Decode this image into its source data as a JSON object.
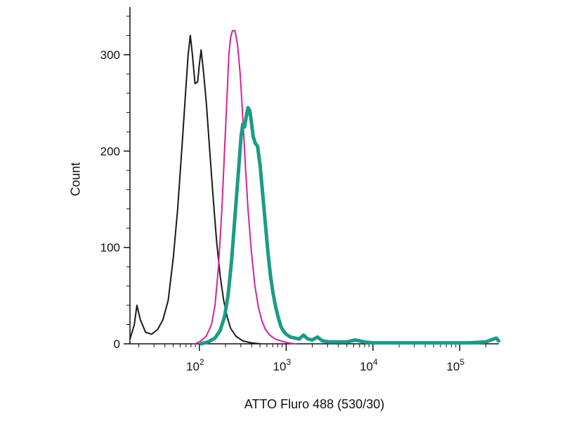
{
  "chart_data": {
    "type": "line",
    "title": "",
    "xlabel": "ATTO Fluro 488 (530/30)",
    "ylabel": "Count",
    "x_scale": "log10",
    "x_range_log10": [
      1.2,
      5.45
    ],
    "ylim": [
      0,
      350
    ],
    "grid": false,
    "legend": "none",
    "y_major_ticks": [
      0,
      100,
      200,
      300
    ],
    "y_minor_step": 20,
    "x_major_exponents": [
      2,
      3,
      4,
      5
    ],
    "x_major_base_label": "10",
    "axis_color": "#111111",
    "series": [
      {
        "name": "series-black",
        "color": "#1a1a1a",
        "stroke_width": 2,
        "points_log10x_count": [
          [
            1.2,
            5
          ],
          [
            1.25,
            20
          ],
          [
            1.28,
            40
          ],
          [
            1.32,
            25
          ],
          [
            1.38,
            12
          ],
          [
            1.45,
            10
          ],
          [
            1.52,
            15
          ],
          [
            1.58,
            25
          ],
          [
            1.64,
            45
          ],
          [
            1.7,
            90
          ],
          [
            1.75,
            140
          ],
          [
            1.8,
            205
          ],
          [
            1.84,
            260
          ],
          [
            1.87,
            300
          ],
          [
            1.895,
            320
          ],
          [
            1.92,
            300
          ],
          [
            1.95,
            270
          ],
          [
            1.98,
            272
          ],
          [
            2.0,
            290
          ],
          [
            2.02,
            305
          ],
          [
            2.05,
            280
          ],
          [
            2.08,
            250
          ],
          [
            2.12,
            200
          ],
          [
            2.16,
            150
          ],
          [
            2.2,
            105
          ],
          [
            2.24,
            70
          ],
          [
            2.28,
            45
          ],
          [
            2.32,
            28
          ],
          [
            2.36,
            16
          ],
          [
            2.42,
            8
          ],
          [
            2.5,
            3
          ],
          [
            2.6,
            1
          ],
          [
            2.7,
            0
          ]
        ]
      },
      {
        "name": "series-magenta",
        "color": "#d6219c",
        "stroke_width": 2,
        "points_log10x_count": [
          [
            1.95,
            0
          ],
          [
            2.02,
            3
          ],
          [
            2.08,
            8
          ],
          [
            2.14,
            20
          ],
          [
            2.18,
            40
          ],
          [
            2.22,
            80
          ],
          [
            2.26,
            140
          ],
          [
            2.29,
            200
          ],
          [
            2.32,
            260
          ],
          [
            2.34,
            300
          ],
          [
            2.36,
            318
          ],
          [
            2.38,
            325
          ],
          [
            2.41,
            325
          ],
          [
            2.44,
            310
          ],
          [
            2.47,
            280
          ],
          [
            2.5,
            235
          ],
          [
            2.53,
            185
          ],
          [
            2.56,
            140
          ],
          [
            2.6,
            95
          ],
          [
            2.64,
            60
          ],
          [
            2.68,
            38
          ],
          [
            2.72,
            24
          ],
          [
            2.76,
            15
          ],
          [
            2.81,
            9
          ],
          [
            2.87,
            5
          ],
          [
            2.94,
            3
          ],
          [
            3.02,
            1
          ],
          [
            3.1,
            0
          ]
        ]
      },
      {
        "name": "series-teal",
        "color": "#1a9c87",
        "stroke_width": 5,
        "points_log10x_count": [
          [
            2.02,
            0
          ],
          [
            2.1,
            2
          ],
          [
            2.18,
            6
          ],
          [
            2.24,
            14
          ],
          [
            2.29,
            28
          ],
          [
            2.33,
            50
          ],
          [
            2.37,
            85
          ],
          [
            2.4,
            120
          ],
          [
            2.43,
            155
          ],
          [
            2.46,
            190
          ],
          [
            2.48,
            215
          ],
          [
            2.5,
            228
          ],
          [
            2.52,
            225
          ],
          [
            2.545,
            238
          ],
          [
            2.56,
            245
          ],
          [
            2.58,
            242
          ],
          [
            2.6,
            230
          ],
          [
            2.62,
            215
          ],
          [
            2.645,
            208
          ],
          [
            2.67,
            205
          ],
          [
            2.7,
            185
          ],
          [
            2.73,
            155
          ],
          [
            2.76,
            125
          ],
          [
            2.79,
            95
          ],
          [
            2.82,
            70
          ],
          [
            2.85,
            52
          ],
          [
            2.88,
            38
          ],
          [
            2.91,
            27
          ],
          [
            2.94,
            18
          ],
          [
            2.97,
            13
          ],
          [
            3.0,
            10
          ],
          [
            3.05,
            7
          ],
          [
            3.1,
            6
          ],
          [
            3.15,
            5
          ],
          [
            3.2,
            9
          ],
          [
            3.25,
            5
          ],
          [
            3.3,
            4
          ],
          [
            3.36,
            7
          ],
          [
            3.42,
            3
          ],
          [
            3.5,
            2
          ],
          [
            3.6,
            2
          ],
          [
            3.7,
            2
          ],
          [
            3.8,
            4
          ],
          [
            3.9,
            2
          ],
          [
            4.0,
            1
          ],
          [
            4.2,
            1
          ],
          [
            4.5,
            1
          ],
          [
            4.8,
            1
          ],
          [
            5.1,
            1
          ],
          [
            5.3,
            2
          ],
          [
            5.42,
            6
          ],
          [
            5.45,
            3
          ]
        ]
      }
    ]
  }
}
